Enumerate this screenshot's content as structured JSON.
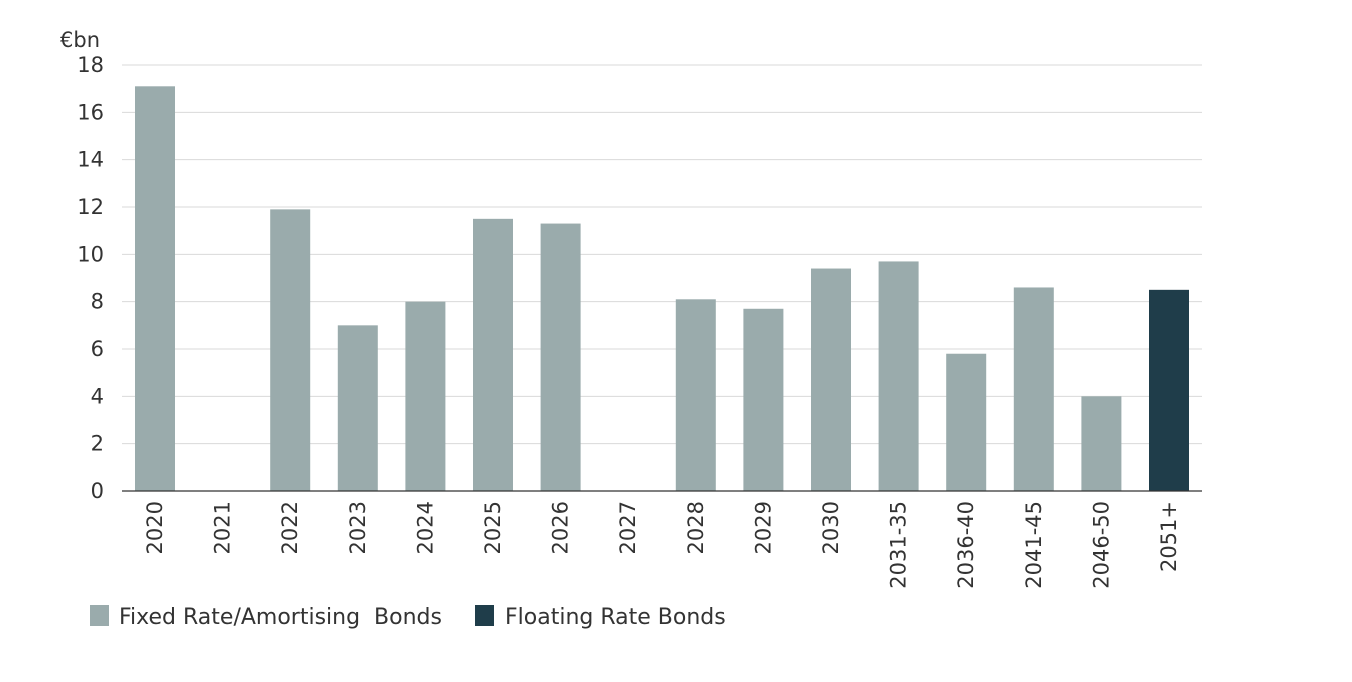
{
  "chart_data": {
    "type": "bar",
    "unit_label": "€bn",
    "categories": [
      "2020",
      "2021",
      "2022",
      "2023",
      "2024",
      "2025",
      "2026",
      "2027",
      "2028",
      "2029",
      "2030",
      "2031-35",
      "2036-40",
      "2041-45",
      "2046-50",
      "2051+"
    ],
    "series": [
      {
        "name": "Fixed Rate/Amortising  Bonds",
        "color": "#9aabac",
        "values": [
          17.1,
          0,
          11.9,
          7.0,
          8.0,
          11.5,
          11.3,
          0,
          8.1,
          7.7,
          9.4,
          9.7,
          5.8,
          8.6,
          4.0,
          0
        ]
      },
      {
        "name": "Floating Rate Bonds",
        "color": "#1f3d4a",
        "values": [
          0,
          0,
          0,
          0,
          0,
          0,
          0,
          0,
          0,
          0,
          0,
          0,
          0,
          0,
          0,
          8.5
        ]
      }
    ],
    "ylim": [
      0,
      18
    ],
    "yticks": [
      "0",
      "2",
      "4",
      "6",
      "8",
      "10",
      "12",
      "14",
      "16",
      "18"
    ],
    "grid": true,
    "legend_position": "bottom-left"
  }
}
